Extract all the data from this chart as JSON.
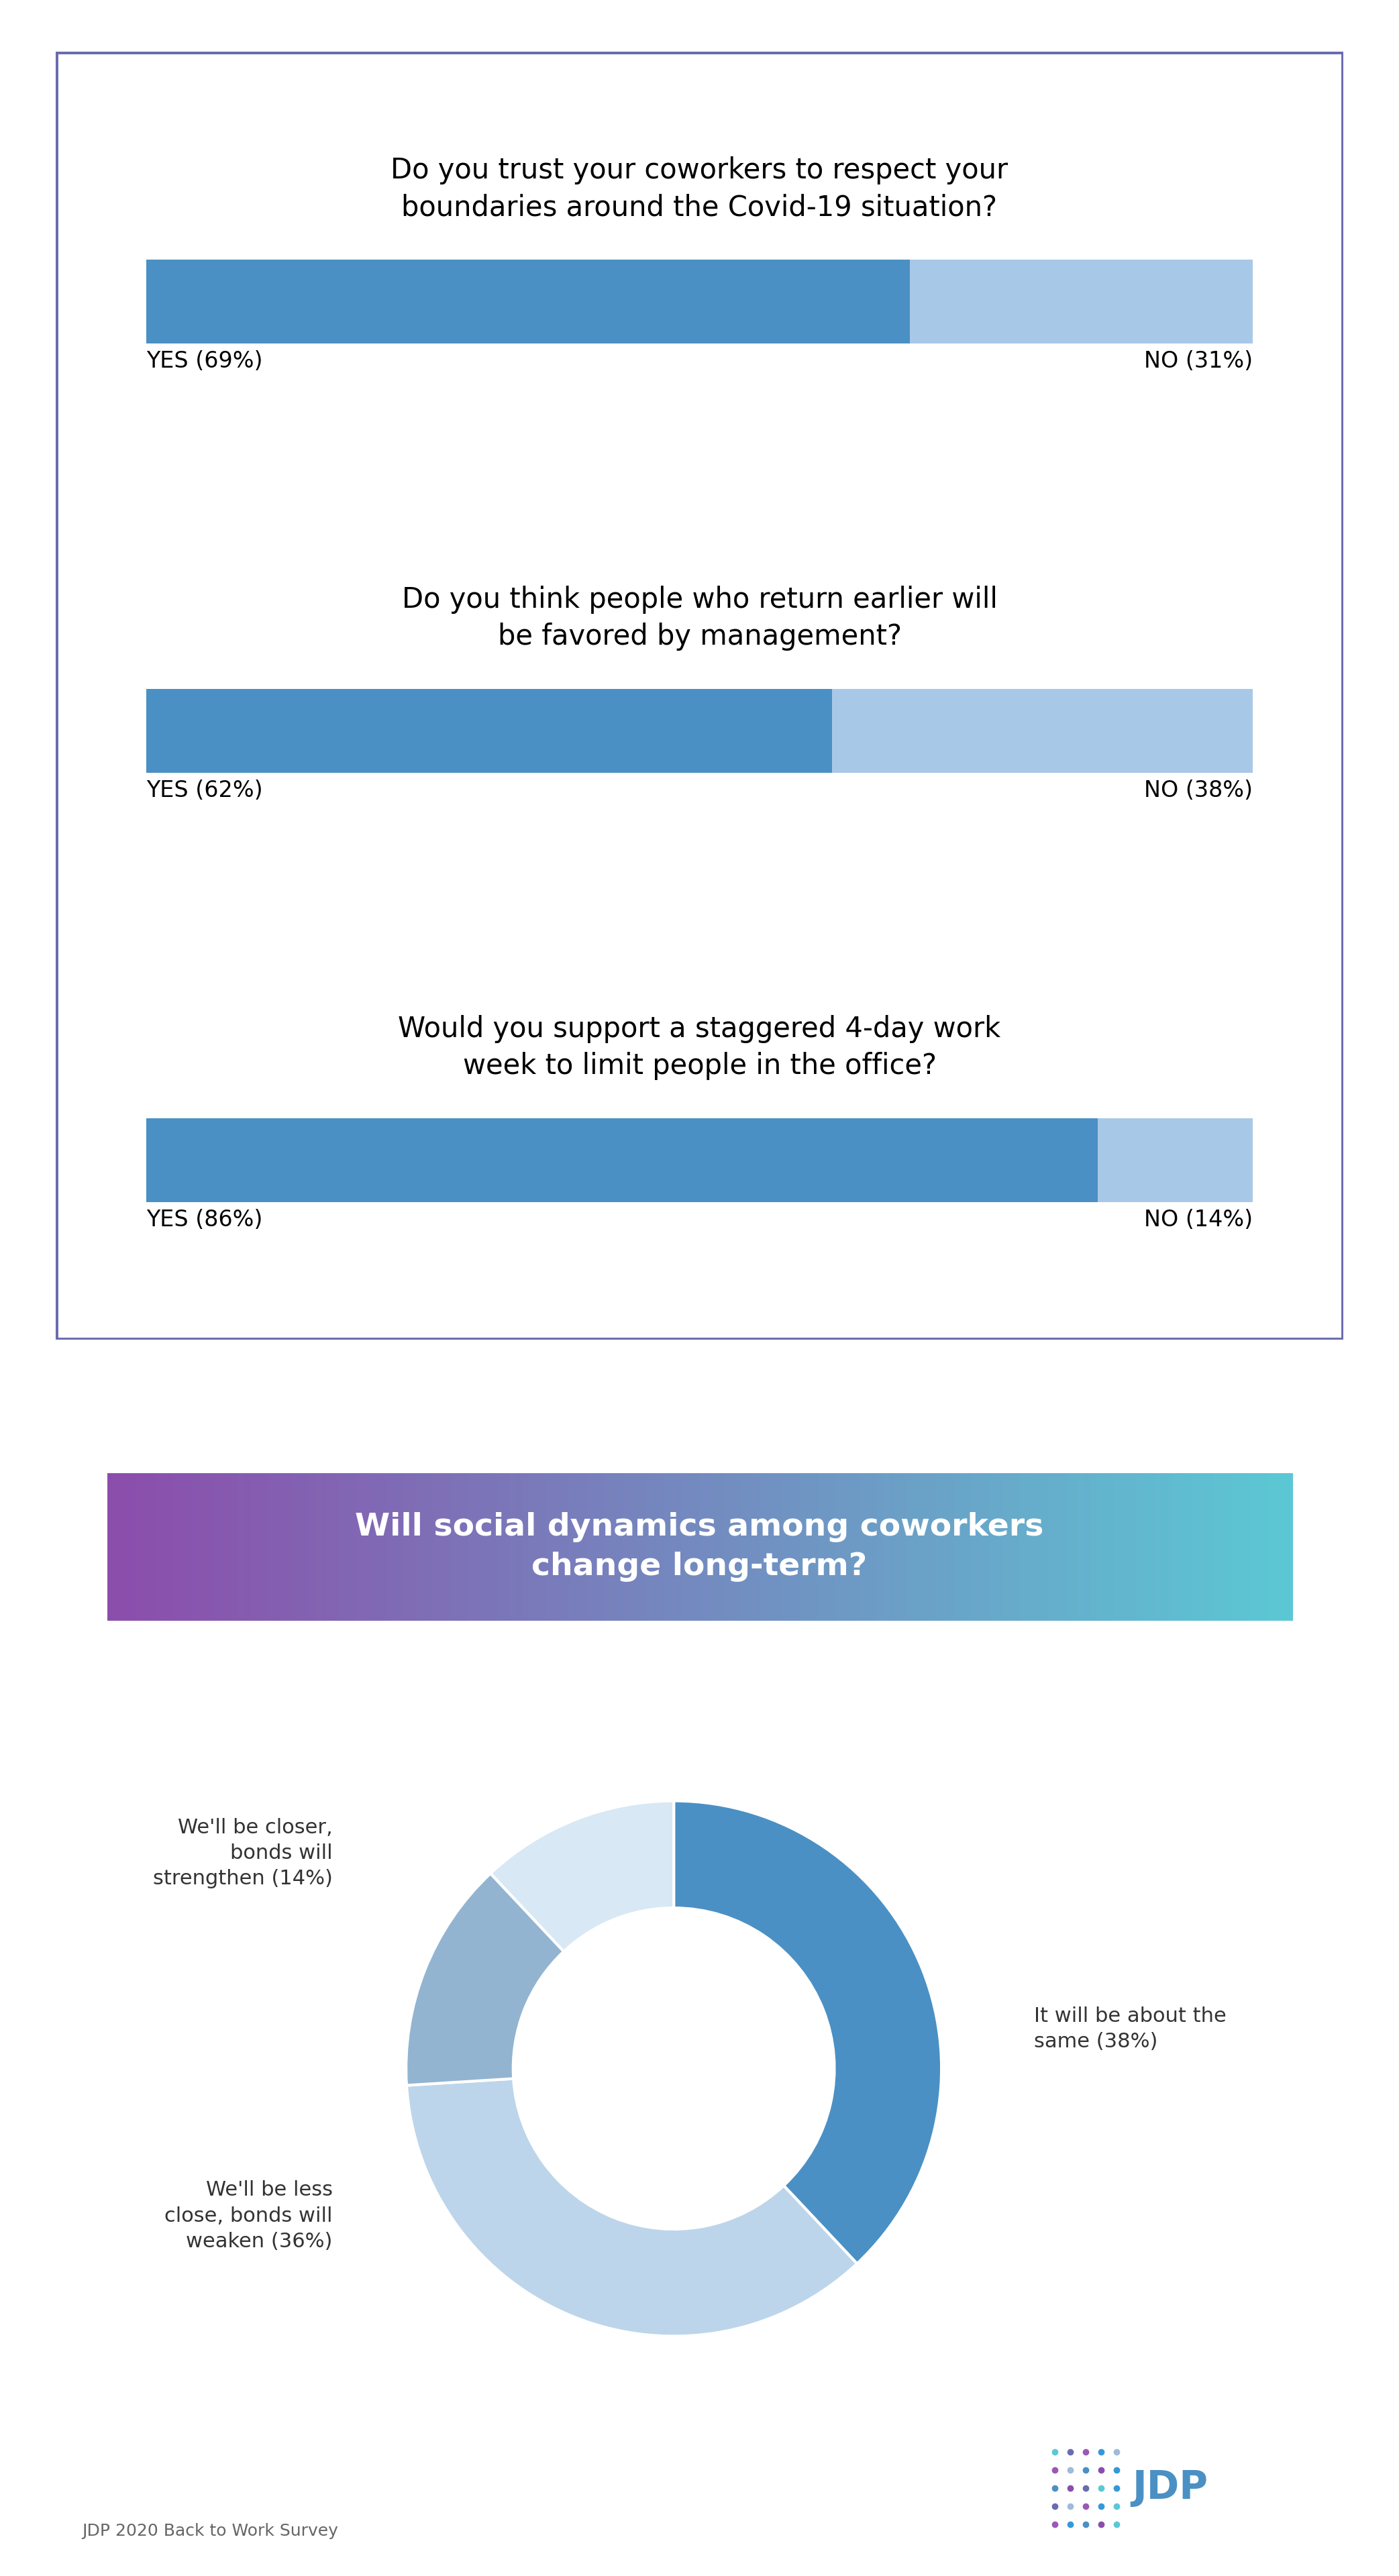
{
  "bar_questions": [
    {
      "question": "Do you trust your coworkers to respect your\nboundaries around the Covid-19 situation?",
      "yes_pct": 69,
      "no_pct": 31,
      "yes_label": "YES (69%)",
      "no_label": "NO (31%)"
    },
    {
      "question": "Do you think people who return earlier will\nbe favored by management?",
      "yes_pct": 62,
      "no_pct": 38,
      "yes_label": "YES (62%)",
      "no_label": "NO (38%)"
    },
    {
      "question": "Would you support a staggered 4-day work\nweek to limit people in the office?",
      "yes_pct": 86,
      "no_pct": 14,
      "yes_label": "YES (86%)",
      "no_label": "NO (14%)"
    }
  ],
  "bar_yes_color": "#4A90C4",
  "bar_no_color": "#A8C8E8",
  "box_border_color": "#6B6BB0",
  "box_fill_color": "#FFFFFF",
  "pie_title": "Will social dynamics among coworkers\nchange long-term?",
  "pie_title_bg_left": "#8B4DAB",
  "pie_title_bg_right": "#5BC8D4",
  "pie_slices": [
    38,
    36,
    14,
    12
  ],
  "pie_colors": [
    "#4A90C4",
    "#BDD5EA",
    "#92B4D0",
    "#D8E8F4"
  ],
  "bg_color": "#FFFFFF",
  "footer_text": "JDP 2020 Back to Work Survey",
  "question_fontsize": 30,
  "label_fontsize": 24,
  "pie_label_fontsize": 22,
  "title_fontsize": 34
}
